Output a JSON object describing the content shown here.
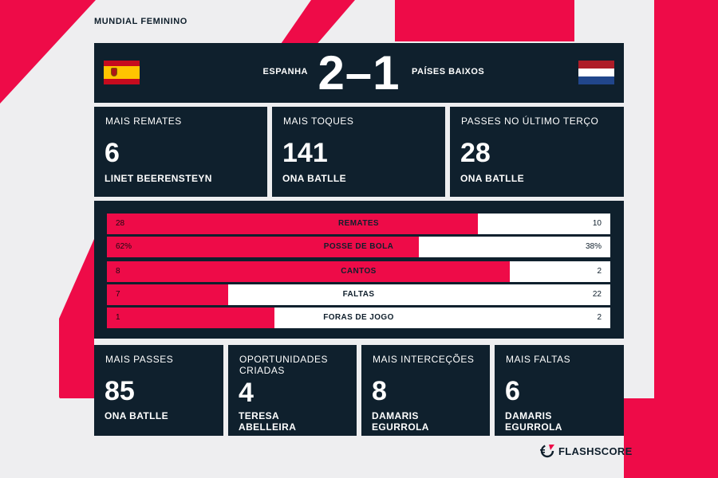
{
  "competition": "MUNDIAL FEMININO",
  "match": {
    "home": {
      "name": "ESPANHA",
      "flag": "spain-flag-icon"
    },
    "away": {
      "name": "PAÍSES BAIXOS",
      "flag": "netherlands-flag-icon"
    },
    "score": "2–1"
  },
  "top_cards": [
    {
      "label": "MAIS REMATES",
      "value": "6",
      "player": "LINET BEERENSTEYN"
    },
    {
      "label": "MAIS TOQUES",
      "value": "141",
      "player": "ONA BATLLE"
    },
    {
      "label": "PASSES NO ÚLTIMO TERÇO",
      "value": "28",
      "player": "ONA BATLLE"
    }
  ],
  "comparison": [
    {
      "label": "REMATES",
      "home": "28",
      "away": "10",
      "home_share": 0.737
    },
    {
      "label": "POSSE DE BOLA",
      "home": "62%",
      "away": "38%",
      "home_share": 0.62
    },
    {
      "label": "CANTOS",
      "home": "8",
      "away": "2",
      "home_share": 0.8
    },
    {
      "label": "FALTAS",
      "home": "7",
      "away": "22",
      "home_share": 0.241
    },
    {
      "label": "FORAS DE JOGO",
      "home": "1",
      "away": "2",
      "home_share": 0.333
    }
  ],
  "bottom_cards": [
    {
      "label": "MAIS PASSES",
      "value": "85",
      "player": "ONA BATLLE"
    },
    {
      "label": "OPORTUNIDADES CRIADAS",
      "value": "4",
      "player": "TERESA ABELLEIRA"
    },
    {
      "label": "MAIS INTERCEÇÕES",
      "value": "8",
      "player": "DAMARIS EGURROLA"
    },
    {
      "label": "MAIS FALTAS",
      "value": "6",
      "player": "DAMARIS EGURROLA"
    }
  ],
  "brand": {
    "name": "FLASHSCORE",
    "icon": "flashscore-logo-icon"
  },
  "colors": {
    "accent": "#ee0b48",
    "panel": "#0f202d",
    "background": "#eeeef0"
  }
}
